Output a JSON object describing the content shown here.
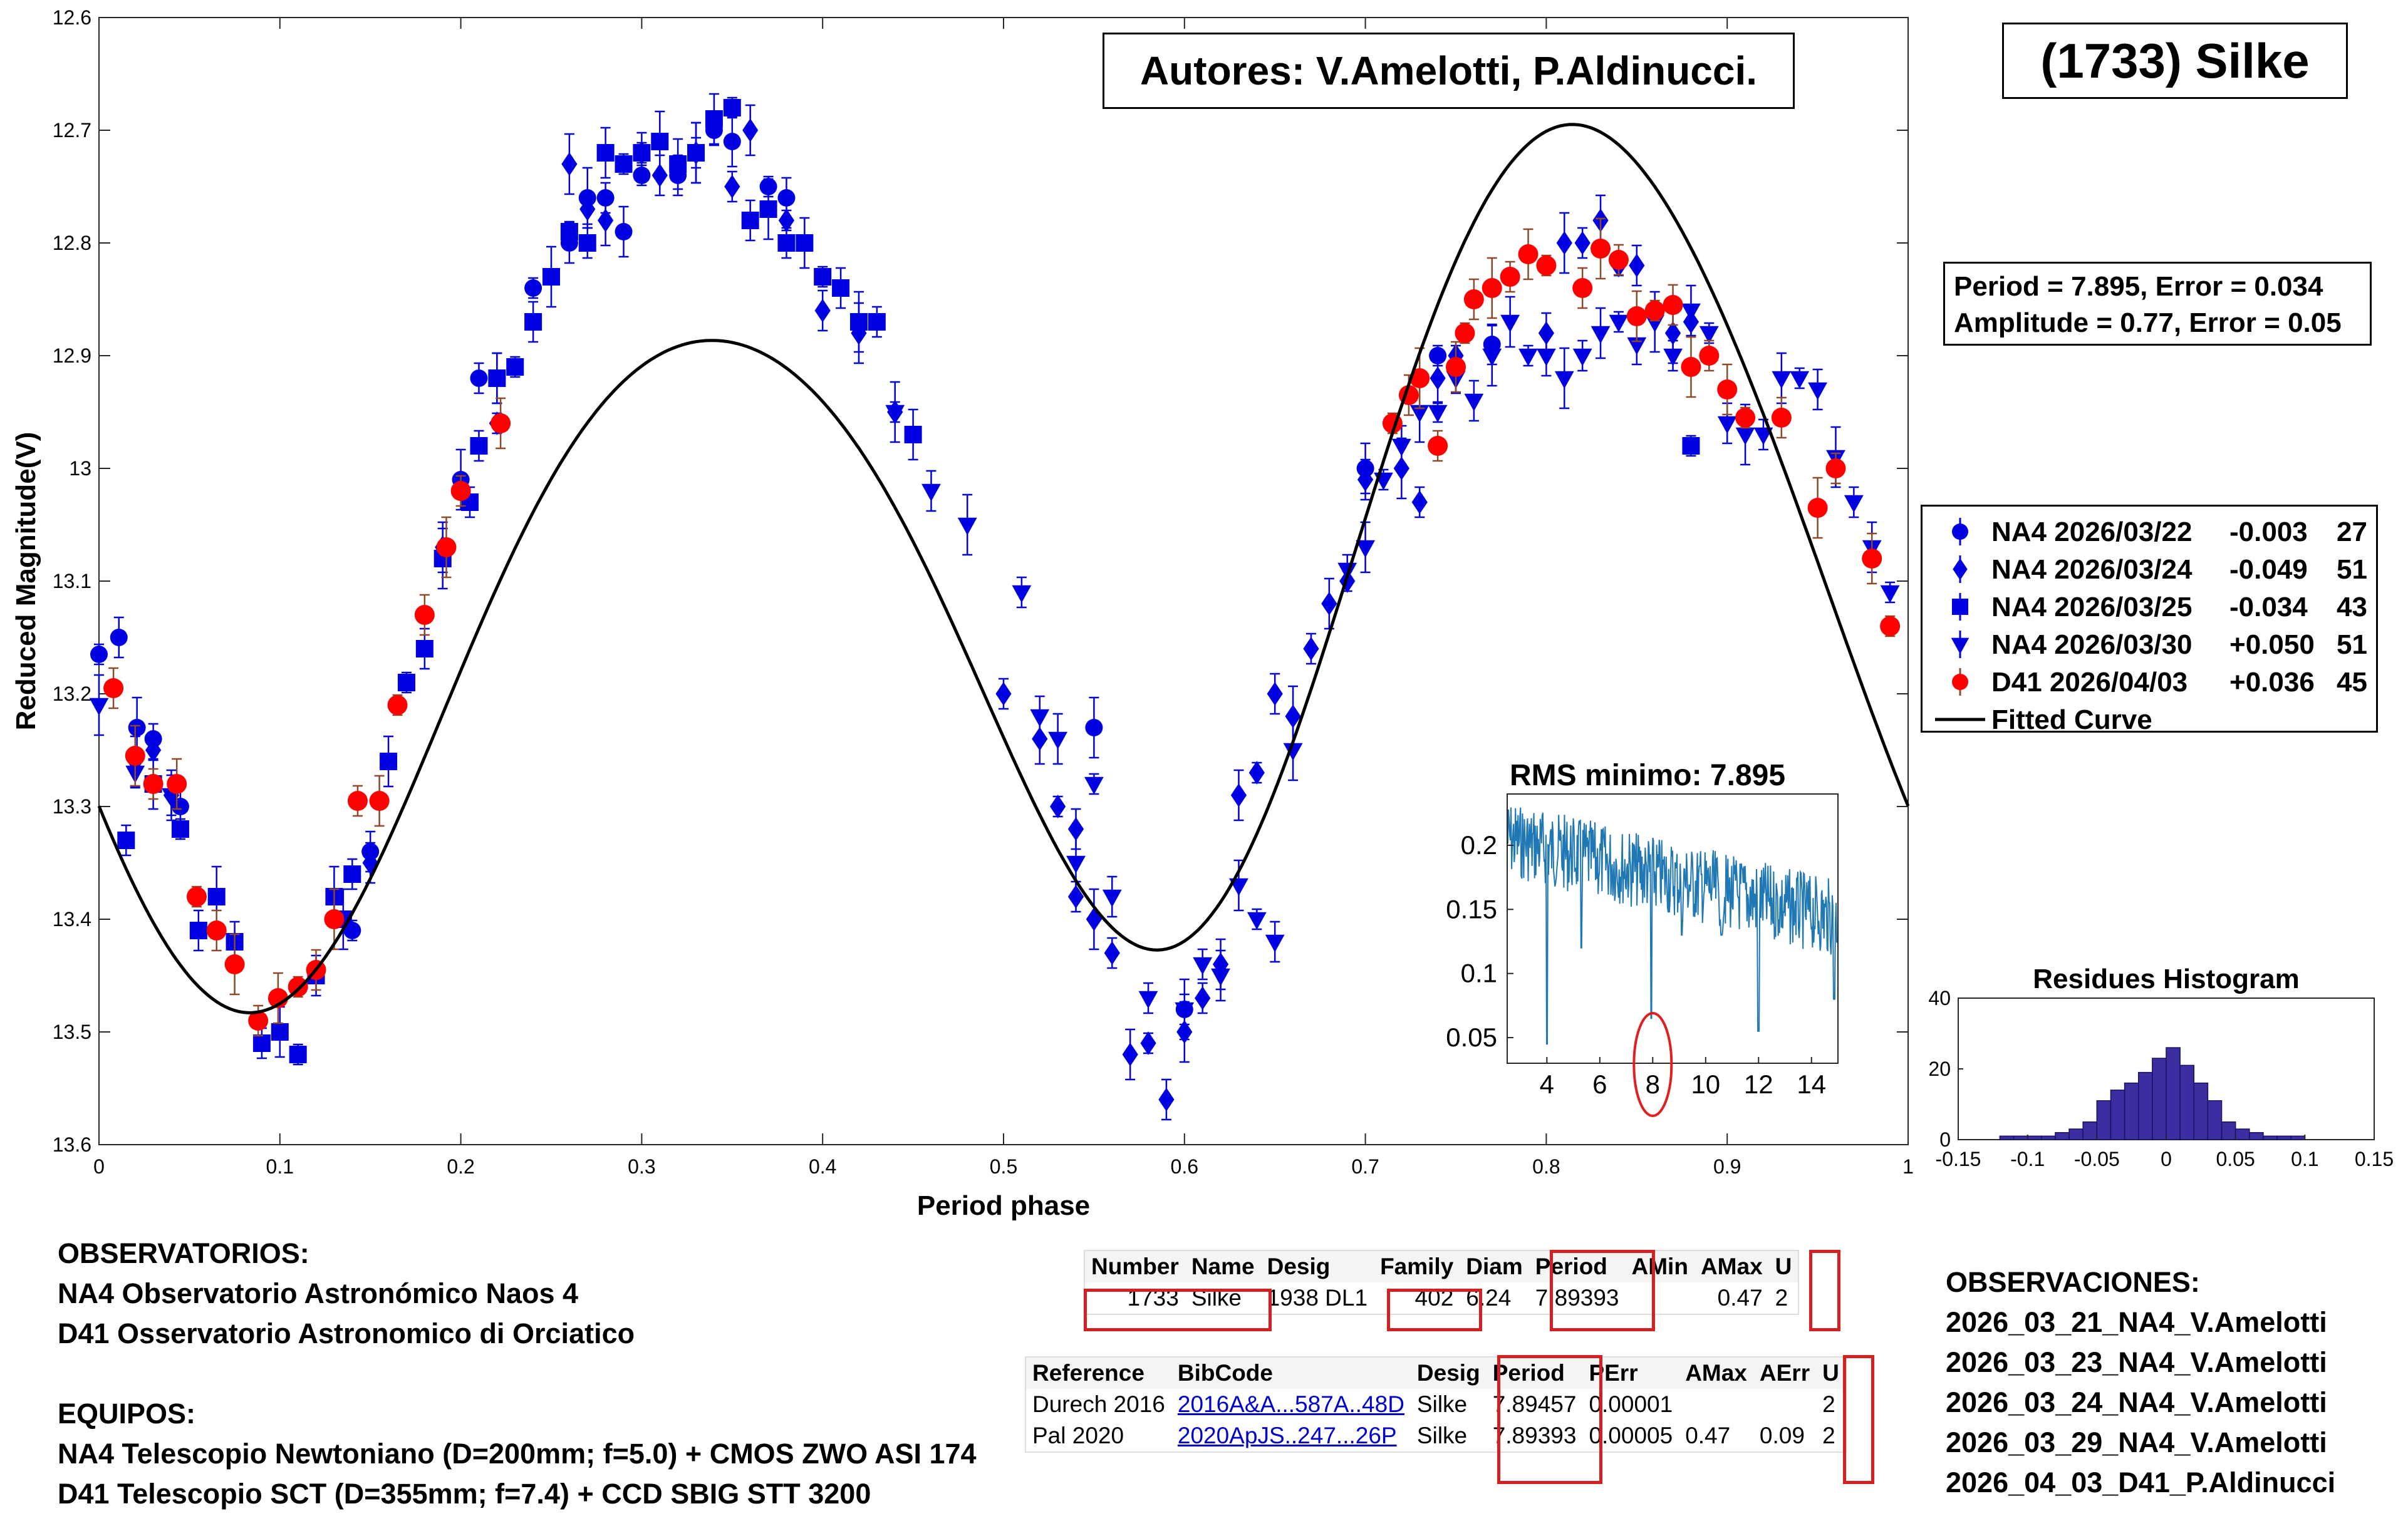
{
  "chart_data": [
    {
      "type": "scatter",
      "title": "",
      "xlabel": "Period phase",
      "ylabel": "Reduced Magnitude(V)",
      "xlim": [
        0,
        1
      ],
      "ylim": [
        12.6,
        13.6
      ],
      "y_reversed": true,
      "xticks": [
        "0",
        "0.1",
        "0.2",
        "0.3",
        "0.4",
        "0.5",
        "0.6",
        "0.7",
        "0.8",
        "0.9",
        "1"
      ],
      "yticks": [
        "12.6",
        "12.7",
        "12.8",
        "12.9",
        "13",
        "13.1",
        "13.2",
        "13.3",
        "13.4",
        "13.5",
        "13.6"
      ],
      "legend_position": "right",
      "series": [
        {
          "name": "NA4 2026/03/22",
          "offset": "-0.003",
          "count": "27",
          "marker": "circle",
          "color": "#0000e0",
          "x": [
            0.0,
            0.011,
            0.021,
            0.03,
            0.045,
            0.14,
            0.15,
            0.2,
            0.21,
            0.22,
            0.24,
            0.26,
            0.27,
            0.28,
            0.29,
            0.3,
            0.32,
            0.33,
            0.34,
            0.35,
            0.37,
            0.38,
            0.55,
            0.6,
            0.7,
            0.74,
            0.77
          ],
          "y": [
            13.165,
            13.15,
            13.23,
            13.24,
            13.3,
            13.41,
            13.34,
            13.01,
            12.92,
            12.92,
            12.84,
            12.8,
            12.76,
            12.76,
            12.79,
            12.74,
            12.74,
            12.72,
            12.7,
            12.71,
            12.75,
            12.76,
            13.23,
            13.48,
            13.0,
            12.9,
            12.89
          ]
        },
        {
          "name": "NA4 2026/03/24",
          "offset": "-0.049",
          "count": "51",
          "marker": "diamond",
          "color": "#0000e0",
          "x": [
            0.02,
            0.03,
            0.04,
            0.26,
            0.27,
            0.28,
            0.3,
            0.31,
            0.33,
            0.35,
            0.36,
            0.38,
            0.4,
            0.42,
            0.5,
            0.52,
            0.53,
            0.54,
            0.55,
            0.56,
            0.57,
            0.58,
            0.59,
            0.6,
            0.61,
            0.63,
            0.64,
            0.65,
            0.66,
            0.67,
            0.68,
            0.69,
            0.7,
            0.72,
            0.73,
            0.74,
            0.75,
            0.8,
            0.81,
            0.82,
            0.83,
            0.84,
            0.85,
            0.87,
            0.88,
            0.19,
            0.22,
            0.15,
            0.44,
            0.54,
            0.62
          ],
          "y": [
            13.26,
            13.25,
            13.29,
            12.73,
            12.77,
            12.78,
            12.72,
            12.74,
            12.72,
            12.75,
            12.7,
            12.78,
            12.86,
            12.88,
            13.2,
            13.24,
            13.3,
            13.32,
            13.4,
            13.43,
            13.52,
            13.51,
            13.56,
            13.5,
            13.47,
            13.29,
            13.27,
            13.2,
            13.22,
            13.16,
            13.12,
            13.1,
            13.01,
            13.0,
            13.03,
            12.92,
            12.9,
            12.88,
            12.8,
            12.8,
            12.78,
            12.82,
            12.82,
            12.88,
            12.87,
            13.07,
            12.96,
            13.35,
            12.95,
            13.38,
            13.44
          ]
        },
        {
          "name": "NA4 2026/03/25",
          "offset": "-0.034",
          "count": "43",
          "marker": "square",
          "color": "#0000e0",
          "x": [
            0.015,
            0.03,
            0.045,
            0.055,
            0.065,
            0.09,
            0.1,
            0.11,
            0.12,
            0.13,
            0.14,
            0.16,
            0.17,
            0.18,
            0.19,
            0.21,
            0.22,
            0.23,
            0.24,
            0.25,
            0.27,
            0.28,
            0.29,
            0.3,
            0.31,
            0.33,
            0.34,
            0.35,
            0.36,
            0.37,
            0.38,
            0.39,
            0.4,
            0.41,
            0.42,
            0.43,
            0.45,
            0.88,
            0.075,
            0.135,
            0.205,
            0.32,
            0.26
          ],
          "y": [
            13.33,
            13.28,
            13.32,
            13.41,
            13.38,
            13.51,
            13.5,
            13.52,
            13.45,
            13.38,
            13.36,
            13.26,
            13.19,
            13.16,
            13.08,
            12.98,
            12.92,
            12.91,
            12.87,
            12.83,
            12.8,
            12.72,
            12.73,
            12.72,
            12.71,
            12.72,
            12.69,
            12.68,
            12.78,
            12.77,
            12.8,
            12.8,
            12.83,
            12.84,
            12.87,
            12.87,
            12.97,
            12.98,
            13.42,
            13.4,
            13.03,
            12.73,
            12.79
          ]
        },
        {
          "name": "NA4 2026/03/30",
          "offset": "+0.050",
          "count": "51",
          "marker": "triangle-down",
          "color": "#0000e0",
          "x": [
            0.0,
            0.02,
            0.04,
            0.44,
            0.46,
            0.48,
            0.51,
            0.53,
            0.55,
            0.56,
            0.6,
            0.61,
            0.63,
            0.64,
            0.65,
            0.66,
            0.69,
            0.7,
            0.71,
            0.72,
            0.73,
            0.75,
            0.78,
            0.79,
            0.8,
            0.81,
            0.82,
            0.83,
            0.84,
            0.85,
            0.86,
            0.87,
            0.88,
            0.89,
            0.9,
            0.91,
            0.92,
            0.93,
            0.94,
            0.95,
            0.96,
            0.97,
            0.98,
            0.99,
            0.52,
            0.54,
            0.58,
            0.62,
            0.74,
            0.76,
            0.77
          ],
          "y": [
            13.21,
            13.27,
            13.29,
            12.95,
            13.02,
            13.05,
            13.11,
            13.24,
            13.28,
            13.38,
            13.48,
            13.44,
            13.37,
            13.4,
            13.42,
            13.25,
            13.09,
            13.07,
            13.01,
            12.98,
            12.95,
            12.92,
            12.87,
            12.9,
            12.9,
            12.92,
            12.9,
            12.88,
            12.87,
            12.89,
            12.87,
            12.9,
            12.86,
            12.88,
            12.96,
            12.97,
            12.97,
            12.92,
            12.92,
            12.93,
            12.99,
            13.03,
            13.07,
            13.11,
            13.22,
            13.35,
            13.47,
            13.45,
            12.95,
            12.94,
            12.9
          ]
        },
        {
          "name": "D41 2026/04/03",
          "offset": "+0.036",
          "count": "45",
          "marker": "circle",
          "color": "#ff0000",
          "x": [
            0.008,
            0.02,
            0.03,
            0.043,
            0.054,
            0.065,
            0.075,
            0.088,
            0.099,
            0.11,
            0.12,
            0.13,
            0.143,
            0.155,
            0.165,
            0.18,
            0.192,
            0.2,
            0.222,
            0.715,
            0.724,
            0.73,
            0.74,
            0.75,
            0.755,
            0.76,
            0.77,
            0.78,
            0.79,
            0.8,
            0.82,
            0.83,
            0.84,
            0.85,
            0.86,
            0.87,
            0.88,
            0.89,
            0.9,
            0.91,
            0.93,
            0.95,
            0.96,
            0.98,
            0.99
          ],
          "y": [
            13.195,
            13.255,
            13.28,
            13.28,
            13.38,
            13.41,
            13.44,
            13.49,
            13.47,
            13.46,
            13.445,
            13.4,
            13.295,
            13.295,
            13.21,
            13.13,
            13.07,
            13.02,
            12.96,
            12.96,
            12.935,
            12.92,
            12.98,
            12.91,
            12.88,
            12.85,
            12.84,
            12.83,
            12.81,
            12.82,
            12.84,
            12.805,
            12.815,
            12.865,
            12.86,
            12.855,
            12.91,
            12.9,
            12.93,
            12.955,
            12.955,
            13.035,
            13.0,
            13.08,
            13.14
          ]
        }
      ],
      "fitted_curve": {
        "name": "Fitted Curve",
        "color": "#000000"
      }
    },
    {
      "type": "line",
      "title": "RMS minimo: 7.895",
      "xlim": [
        2.5,
        15
      ],
      "ylim": [
        0.03,
        0.24
      ],
      "xticks": [
        "4",
        "6",
        "8",
        "10",
        "12",
        "14"
      ],
      "yticks": [
        "0.2",
        "0.15",
        "0.1",
        "0.05"
      ],
      "highlight_x": 8
    },
    {
      "type": "bar",
      "title": "Residues Histogram",
      "xlim": [
        -0.15,
        0.15
      ],
      "ylim": [
        0,
        40
      ],
      "xticks": [
        "-0.15",
        "-0.1",
        "-0.05",
        "0",
        "0.05",
        "0.1",
        "0.15"
      ],
      "yticks": [
        "40",
        "20",
        "0"
      ],
      "bin_width": 0.01,
      "bins": [
        -0.12,
        -0.11,
        -0.1,
        -0.09,
        -0.08,
        -0.07,
        -0.06,
        -0.05,
        -0.04,
        -0.03,
        -0.02,
        -0.01,
        0.0,
        0.01,
        0.02,
        0.03,
        0.04,
        0.05,
        0.06,
        0.07,
        0.08,
        0.09
      ],
      "values": [
        1,
        1,
        1,
        1,
        2,
        3,
        5,
        11,
        14,
        16,
        19,
        23,
        26,
        21,
        16,
        11,
        5,
        3,
        2,
        1,
        1,
        1
      ],
      "color": "#3b2ea0"
    }
  ],
  "authors": "Autores: V.Amelotti, P.Aldinucci.",
  "object_name": "(1733) Silke",
  "period_box": {
    "line1": "Period =  7.895, Error = 0.034",
    "line2": "Amplitude = 0.77, Error = 0.05"
  },
  "legend_fitted": "Fitted Curve",
  "observatorios": {
    "title": "OBSERVATORIOS:",
    "lines": [
      "NA4 Observatorio Astronómico Naos 4",
      "D41 Osservatorio Astronomico di Orciatico"
    ]
  },
  "equipos": {
    "title": "EQUIPOS:",
    "lines": [
      "NA4 Telescopio Newtoniano (D=200mm; f=5.0) + CMOS ZWO ASI 174",
      "D41 Telescopio SCT (D=355mm; f=7.4) + CCD SBIG STT 3200"
    ]
  },
  "observaciones": {
    "title": "OBSERVACIONES:",
    "lines": [
      "2026_03_21_NA4_V.Amelotti",
      "2026_03_23_NA4_V.Amelotti",
      "2026_03_24_NA4_V.Amelotti",
      "2026_03_29_NA4_V.Amelotti",
      "2026_04_03_D41_P.Aldinucci"
    ]
  },
  "table1": {
    "headers": [
      "Number",
      "Name",
      "Desig",
      "Family",
      "Diam",
      "Period",
      "AMin",
      "AMax",
      "U"
    ],
    "row": [
      "1733",
      "Silke",
      "1938 DL1",
      "402",
      "6.24",
      "7.89393",
      "",
      "0.47",
      "2"
    ]
  },
  "table2": {
    "headers": [
      "Reference",
      "BibCode",
      "Desig",
      "Period",
      "PErr",
      "AMax",
      "AErr",
      "U"
    ],
    "rows": [
      [
        "Durech 2016",
        "2016A&A...587A..48D",
        "Silke",
        "7.89457",
        "0.00001",
        "",
        "",
        "2"
      ],
      [
        "Pal 2020",
        "2020ApJS..247...26P",
        "Silke",
        "7.89393",
        "0.00005",
        "0.47",
        "0.09",
        "2"
      ]
    ]
  }
}
